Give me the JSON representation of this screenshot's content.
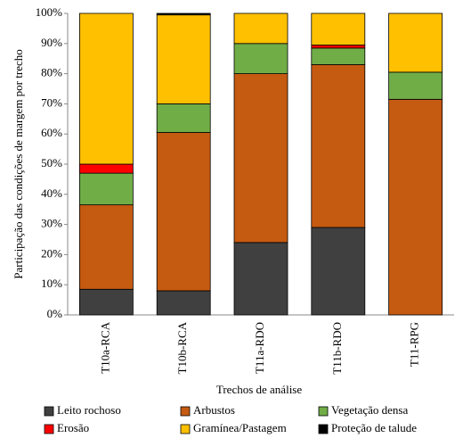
{
  "chart_data": {
    "type": "stacked_bar",
    "x_label": "Trechos de análise",
    "y_label": "Participação das condições de margem por trecho",
    "categories": [
      "T10a-RCA",
      "T10b-RCA",
      "T11a-RDO",
      "T11b-RDO",
      "T11-RPG"
    ],
    "series": [
      {
        "name": "Leito rochoso",
        "color": "#404040",
        "values": [
          8.5,
          8,
          24,
          29,
          0
        ]
      },
      {
        "name": "Arbustos",
        "color": "#c55a11",
        "values": [
          28,
          52.5,
          56,
          54,
          71.5
        ]
      },
      {
        "name": "Vegetação densa",
        "color": "#70ad47",
        "values": [
          10.5,
          9.5,
          10,
          5.5,
          9
        ]
      },
      {
        "name": "Erosão",
        "color": "#ff0000",
        "values": [
          3,
          0,
          0,
          1,
          0
        ]
      },
      {
        "name": "Gramínea/Pastagem",
        "color": "#ffc000",
        "values": [
          50,
          29.5,
          10,
          10.5,
          19.5
        ]
      },
      {
        "name": "Proteção de talude",
        "color": "#000000",
        "values": [
          0,
          0.5,
          0,
          0,
          0
        ]
      }
    ],
    "ylim": [
      0,
      100
    ],
    "yticks": [
      {
        "value": 0,
        "label": "0%"
      },
      {
        "value": 10,
        "label": "10%"
      },
      {
        "value": 20,
        "label": "20%"
      },
      {
        "value": 30,
        "label": "30%"
      },
      {
        "value": 40,
        "label": "40%"
      },
      {
        "value": 50,
        "label": "50%"
      },
      {
        "value": 60,
        "label": "60%"
      },
      {
        "value": 70,
        "label": "70%"
      },
      {
        "value": 80,
        "label": "80%"
      },
      {
        "value": 90,
        "label": "90%"
      },
      {
        "value": 100,
        "label": "100%"
      }
    ]
  }
}
